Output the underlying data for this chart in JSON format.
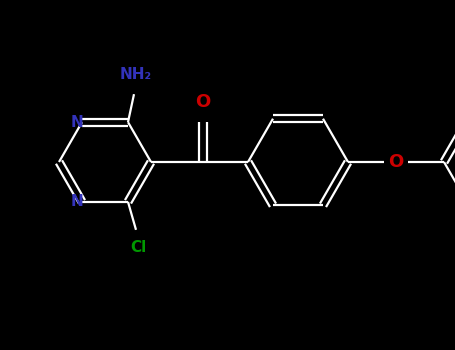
{
  "bg_color": "#000000",
  "bond_color": "#ffffff",
  "bond_width": 1.6,
  "color_NH2": "#3333bb",
  "color_O": "#cc0000",
  "color_Cl": "#009900",
  "color_N": "#3333bb",
  "figsize": [
    4.55,
    3.5
  ],
  "dpi": 100,
  "xlim": [
    0,
    455
  ],
  "ylim": [
    0,
    350
  ]
}
